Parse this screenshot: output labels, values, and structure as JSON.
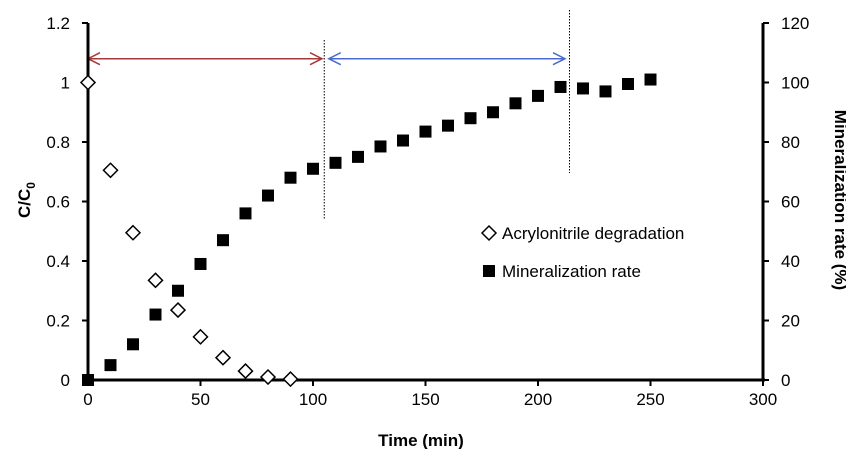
{
  "chart_data": {
    "type": "scatter",
    "xlabel": "Time (min)",
    "ylabel_left_main": "C/C",
    "ylabel_left_sub": "0",
    "ylabel_right": "Mineralization rate (%)",
    "xlim": [
      0,
      300
    ],
    "ylim_left": [
      0,
      1.2
    ],
    "ylim_right": [
      0,
      120
    ],
    "x_ticks": [
      "0",
      "50",
      "100",
      "150",
      "200",
      "250",
      "300"
    ],
    "y_left_ticks": [
      "0",
      "0.2",
      "0.4",
      "0.6",
      "0.8",
      "1",
      "1.2"
    ],
    "y_right_ticks": [
      "0",
      "20",
      "40",
      "60",
      "80",
      "100",
      "120"
    ],
    "grid": false,
    "legend_position": "center-right",
    "series": [
      {
        "name": "Acrylonitrile degradation",
        "axis": "left",
        "marker": "open-diamond",
        "color": "#000000",
        "x": [
          0,
          10,
          20,
          30,
          40,
          50,
          60,
          70,
          80,
          90
        ],
        "y": [
          1.0,
          0.705,
          0.495,
          0.335,
          0.235,
          0.145,
          0.075,
          0.03,
          0.01,
          0.003
        ]
      },
      {
        "name": "Mineralization rate",
        "axis": "right",
        "marker": "filled-square",
        "color": "#000000",
        "x": [
          0,
          10,
          20,
          30,
          40,
          50,
          60,
          70,
          80,
          90,
          100,
          110,
          120,
          130,
          140,
          150,
          160,
          170,
          180,
          190,
          200,
          210,
          220,
          230,
          240,
          250
        ],
        "y": [
          0,
          5,
          12,
          22,
          30,
          39,
          47,
          56,
          62,
          68,
          71,
          73,
          75,
          78.5,
          80.5,
          83.5,
          85.5,
          88,
          90,
          93,
          95.5,
          98.5,
          98,
          97,
          99.5,
          101
        ]
      }
    ],
    "annotations": {
      "dotted_lines_x": [
        105,
        214
      ],
      "arrows": [
        {
          "from_x": 0,
          "to_x": 104,
          "y_left": 1.08,
          "color": "#a63a3a"
        },
        {
          "from_x": 107,
          "to_x": 212,
          "y_left": 1.08,
          "color": "#4a6ad0"
        }
      ]
    }
  }
}
